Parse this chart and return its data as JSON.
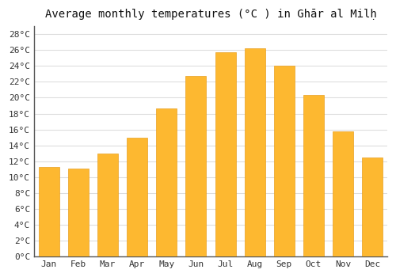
{
  "title": "Average monthly temperatures (°C ) in Ghār al Milḥ",
  "months": [
    "Jan",
    "Feb",
    "Mar",
    "Apr",
    "May",
    "Jun",
    "Jul",
    "Aug",
    "Sep",
    "Oct",
    "Nov",
    "Dec"
  ],
  "values": [
    11.3,
    11.1,
    13.0,
    15.0,
    18.7,
    22.7,
    25.7,
    26.2,
    24.0,
    20.3,
    15.8,
    12.5
  ],
  "bar_color": "#FDB830",
  "bar_edge_color": "#E8A020",
  "ylim": [
    0,
    29
  ],
  "ytick_step": 2,
  "background_color": "#ffffff",
  "grid_color": "#dddddd",
  "title_fontsize": 10,
  "tick_fontsize": 8,
  "font_family": "monospace"
}
